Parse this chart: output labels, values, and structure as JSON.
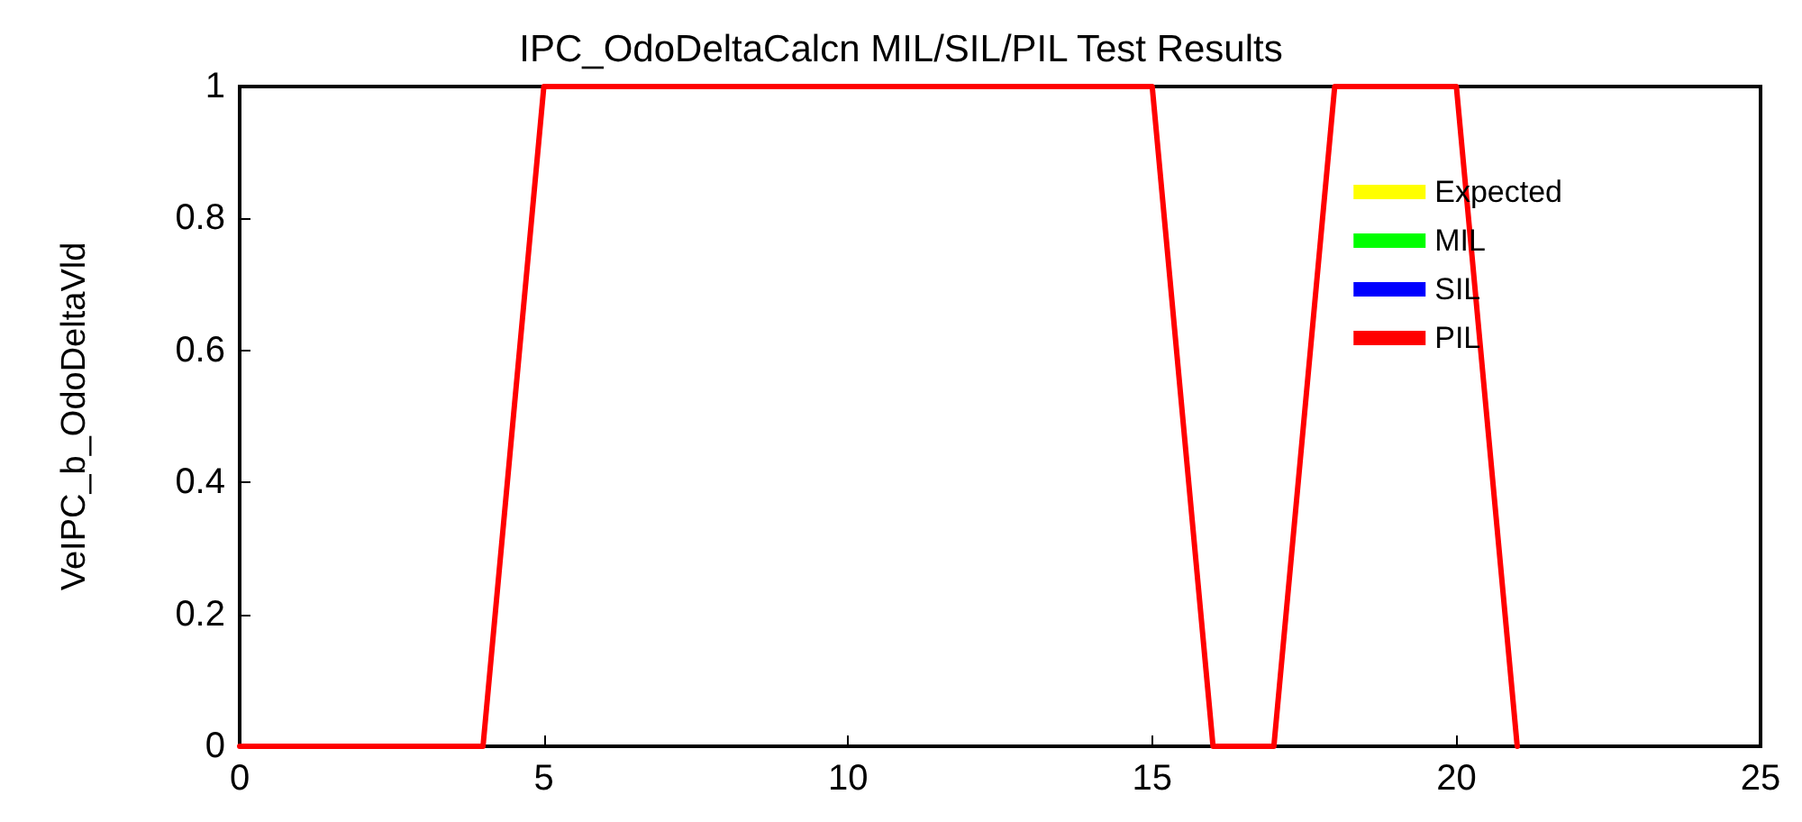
{
  "chart_data": {
    "type": "line",
    "title": "IPC_OdoDeltaCalcn MIL/SIL/PIL Test Results",
    "ylabel": "VeIPC_b_OdoDeltaVld",
    "x": [
      0,
      4,
      5,
      15,
      16,
      17,
      18,
      20,
      21
    ],
    "series": [
      {
        "name": "Expected",
        "color": "#ffff00",
        "values": [
          null,
          null,
          null,
          null,
          null,
          null,
          null,
          null,
          null
        ]
      },
      {
        "name": "MIL",
        "color": "#00ff00",
        "values": [
          null,
          null,
          null,
          null,
          null,
          null,
          null,
          null,
          null
        ]
      },
      {
        "name": "SIL",
        "color": "#0000ff",
        "values": [
          null,
          null,
          null,
          null,
          null,
          null,
          null,
          null,
          null
        ]
      },
      {
        "name": "PIL",
        "color": "#ff0000",
        "values": [
          0,
          0,
          1,
          1,
          0,
          0,
          1,
          1,
          0
        ]
      }
    ],
    "xlim": [
      0,
      25
    ],
    "xticks": [
      0,
      5,
      10,
      15,
      20,
      25
    ],
    "ylim": [
      0,
      1
    ],
    "yticks": [
      0,
      0.2,
      0.4,
      0.6,
      0.8,
      1
    ],
    "grid": false,
    "legend": "top right",
    "marker": "none",
    "line_style": "solid"
  }
}
